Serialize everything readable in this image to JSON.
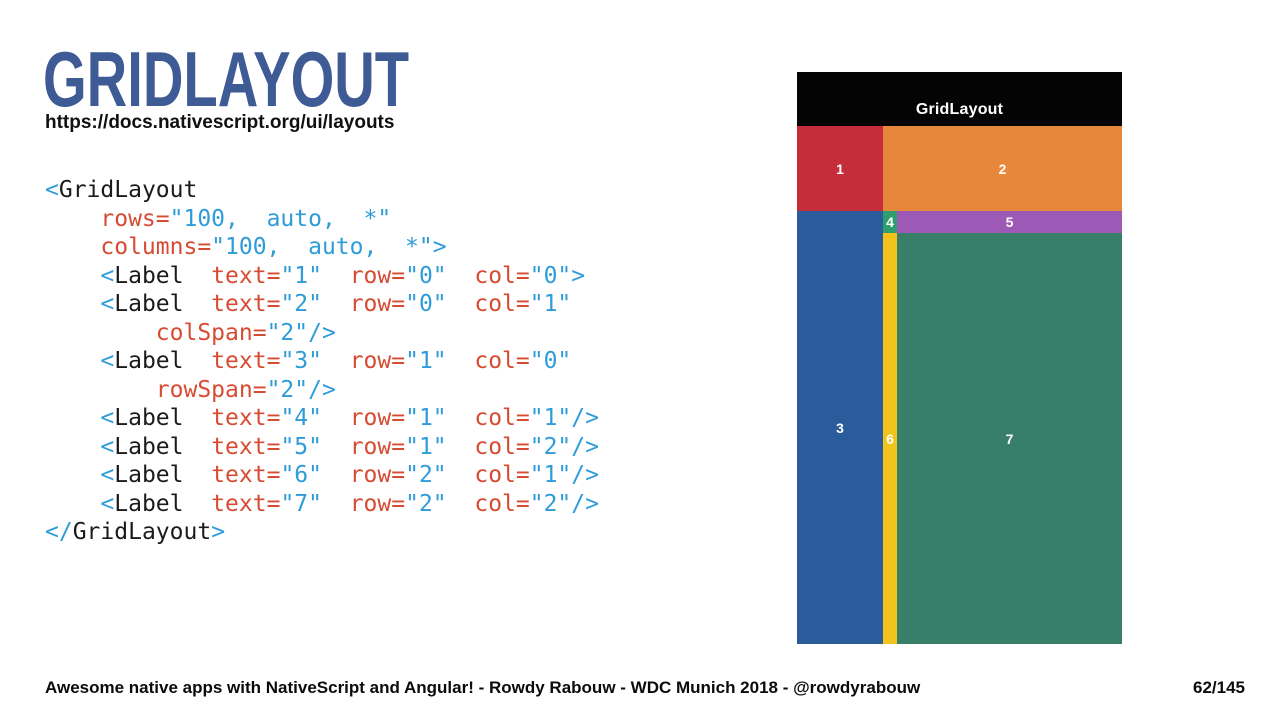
{
  "slide": {
    "title": "GRIDLAYOUT",
    "link": "https://docs.nativescript.org/ui/layouts",
    "footer_credit": "Awesome native apps with NativeScript and Angular! - Rowdy Rabouw - WDC Munich 2018 - @rowdyrabouw",
    "page_indicator": "62/145"
  },
  "colors": {
    "title": "#3e5b95",
    "code_tag": "#1b1b1b",
    "code_punctuation": "#2e9cd9",
    "code_attribute": "#d74b32",
    "code_value": "#2e9cd9",
    "phone_header_bg": "#040404"
  },
  "code": {
    "language": "xml",
    "lines": [
      [
        [
          "p",
          "<"
        ],
        [
          "t",
          "GridLayout"
        ]
      ],
      [
        [
          "t",
          "    "
        ],
        [
          "a",
          "rows="
        ],
        [
          "v",
          "\"100,  auto,  *\""
        ]
      ],
      [
        [
          "t",
          "    "
        ],
        [
          "a",
          "columns="
        ],
        [
          "v",
          "\"100,  auto,  *\""
        ],
        [
          "p",
          ">"
        ]
      ],
      [
        [
          "t",
          "    "
        ],
        [
          "p",
          "<"
        ],
        [
          "t",
          "Label"
        ],
        [
          "t",
          "  "
        ],
        [
          "a",
          "text="
        ],
        [
          "v",
          "\"1\""
        ],
        [
          "t",
          "  "
        ],
        [
          "a",
          "row="
        ],
        [
          "v",
          "\"0\""
        ],
        [
          "t",
          "  "
        ],
        [
          "a",
          "col="
        ],
        [
          "v",
          "\"0\""
        ],
        [
          "p",
          ">"
        ]
      ],
      [
        [
          "t",
          "    "
        ],
        [
          "p",
          "<"
        ],
        [
          "t",
          "Label"
        ],
        [
          "t",
          "  "
        ],
        [
          "a",
          "text="
        ],
        [
          "v",
          "\"2\""
        ],
        [
          "t",
          "  "
        ],
        [
          "a",
          "row="
        ],
        [
          "v",
          "\"0\""
        ],
        [
          "t",
          "  "
        ],
        [
          "a",
          "col="
        ],
        [
          "v",
          "\"1\""
        ]
      ],
      [
        [
          "t",
          "        "
        ],
        [
          "a",
          "colSpan="
        ],
        [
          "v",
          "\"2\""
        ],
        [
          "p",
          "/>"
        ]
      ],
      [
        [
          "t",
          "    "
        ],
        [
          "p",
          "<"
        ],
        [
          "t",
          "Label"
        ],
        [
          "t",
          "  "
        ],
        [
          "a",
          "text="
        ],
        [
          "v",
          "\"3\""
        ],
        [
          "t",
          "  "
        ],
        [
          "a",
          "row="
        ],
        [
          "v",
          "\"1\""
        ],
        [
          "t",
          "  "
        ],
        [
          "a",
          "col="
        ],
        [
          "v",
          "\"0\""
        ]
      ],
      [
        [
          "t",
          "        "
        ],
        [
          "a",
          "rowSpan="
        ],
        [
          "v",
          "\"2\""
        ],
        [
          "p",
          "/>"
        ]
      ],
      [
        [
          "t",
          "    "
        ],
        [
          "p",
          "<"
        ],
        [
          "t",
          "Label"
        ],
        [
          "t",
          "  "
        ],
        [
          "a",
          "text="
        ],
        [
          "v",
          "\"4\""
        ],
        [
          "t",
          "  "
        ],
        [
          "a",
          "row="
        ],
        [
          "v",
          "\"1\""
        ],
        [
          "t",
          "  "
        ],
        [
          "a",
          "col="
        ],
        [
          "v",
          "\"1\""
        ],
        [
          "p",
          "/>"
        ]
      ],
      [
        [
          "t",
          "    "
        ],
        [
          "p",
          "<"
        ],
        [
          "t",
          "Label"
        ],
        [
          "t",
          "  "
        ],
        [
          "a",
          "text="
        ],
        [
          "v",
          "\"5\""
        ],
        [
          "t",
          "  "
        ],
        [
          "a",
          "row="
        ],
        [
          "v",
          "\"1\""
        ],
        [
          "t",
          "  "
        ],
        [
          "a",
          "col="
        ],
        [
          "v",
          "\"2\""
        ],
        [
          "p",
          "/>"
        ]
      ],
      [
        [
          "t",
          "    "
        ],
        [
          "p",
          "<"
        ],
        [
          "t",
          "Label"
        ],
        [
          "t",
          "  "
        ],
        [
          "a",
          "text="
        ],
        [
          "v",
          "\"6\""
        ],
        [
          "t",
          "  "
        ],
        [
          "a",
          "row="
        ],
        [
          "v",
          "\"2\""
        ],
        [
          "t",
          "  "
        ],
        [
          "a",
          "col="
        ],
        [
          "v",
          "\"1\""
        ],
        [
          "p",
          "/>"
        ]
      ],
      [
        [
          "t",
          "    "
        ],
        [
          "p",
          "<"
        ],
        [
          "t",
          "Label"
        ],
        [
          "t",
          "  "
        ],
        [
          "a",
          "text="
        ],
        [
          "v",
          "\"7\""
        ],
        [
          "t",
          "  "
        ],
        [
          "a",
          "row="
        ],
        [
          "v",
          "\"2\""
        ],
        [
          "t",
          "  "
        ],
        [
          "a",
          "col="
        ],
        [
          "v",
          "\"2\""
        ],
        [
          "p",
          "/>"
        ]
      ],
      [
        [
          "p",
          "</"
        ],
        [
          "t",
          "GridLayout"
        ],
        [
          "p",
          ">"
        ]
      ]
    ]
  },
  "phone": {
    "header_title": "GridLayout",
    "cells": [
      {
        "label": "1",
        "row": 1,
        "col": 1,
        "rowSpan": 1,
        "colSpan": 1,
        "bg": "#c42d39"
      },
      {
        "label": "2",
        "row": 1,
        "col": 2,
        "rowSpan": 1,
        "colSpan": 2,
        "bg": "#e6873c"
      },
      {
        "label": "3",
        "row": 2,
        "col": 1,
        "rowSpan": 2,
        "colSpan": 1,
        "bg": "#2a5c9c"
      },
      {
        "label": "4",
        "row": 2,
        "col": 2,
        "rowSpan": 1,
        "colSpan": 1,
        "bg": "#2f9e6e"
      },
      {
        "label": "5",
        "row": 2,
        "col": 3,
        "rowSpan": 1,
        "colSpan": 1,
        "bg": "#9c59b5"
      },
      {
        "label": "6",
        "row": 3,
        "col": 2,
        "rowSpan": 1,
        "colSpan": 1,
        "bg": "#f2c41b"
      },
      {
        "label": "7",
        "row": 3,
        "col": 3,
        "rowSpan": 1,
        "colSpan": 1,
        "bg": "#377f68"
      }
    ]
  }
}
